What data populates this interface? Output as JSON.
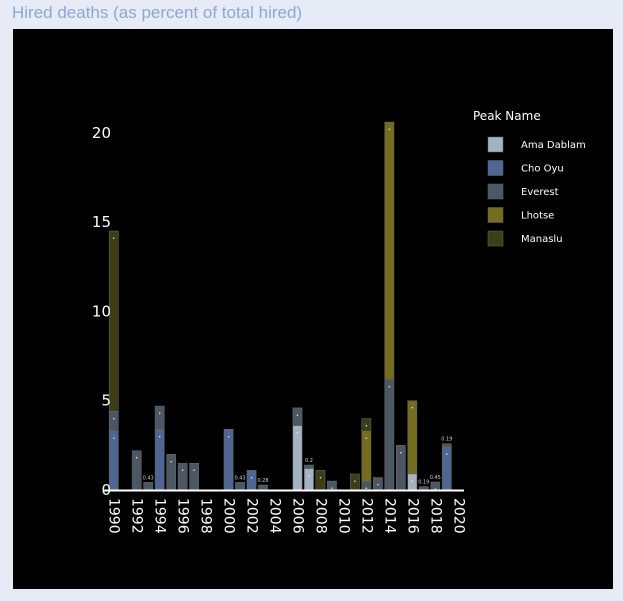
{
  "page": {
    "title": "Hired deaths (as percent of total hired)"
  },
  "chart_data": {
    "type": "bar",
    "stacked": true,
    "background": "#000000",
    "ylim": [
      0,
      21
    ],
    "yticks": [
      0,
      5,
      10,
      15,
      20
    ],
    "x_ticks": [
      1990,
      1992,
      1994,
      1996,
      1998,
      2000,
      2002,
      2004,
      2006,
      2008,
      2010,
      2012,
      2014,
      2016,
      2018,
      2020
    ],
    "legend": {
      "title": "Peak Name",
      "position": "top-right"
    },
    "series": [
      {
        "name": "Ama Dablam",
        "color": "#a4b3c1"
      },
      {
        "name": "Cho Oyu",
        "color": "#4f6592"
      },
      {
        "name": "Everest",
        "color": "#4b5762"
      },
      {
        "name": "Lhotse",
        "color": "#746c1f"
      },
      {
        "name": "Manaslu",
        "color": "#3d3d18"
      }
    ],
    "bars": [
      {
        "year": 1990,
        "segments": [
          {
            "series": "Cho Oyu",
            "value": 3.3
          },
          {
            "series": "Everest",
            "value": 1.1
          },
          {
            "series": "Manaslu",
            "value": 10.1
          }
        ]
      },
      {
        "year": 1992,
        "segments": [
          {
            "series": "Everest",
            "value": 2.2
          }
        ]
      },
      {
        "year": 1993,
        "segments": [
          {
            "series": "Everest",
            "value": 0.43
          }
        ],
        "total_label": "0.43"
      },
      {
        "year": 1994,
        "segments": [
          {
            "series": "Cho Oyu",
            "value": 3.4
          },
          {
            "series": "Everest",
            "value": 1.3
          }
        ]
      },
      {
        "year": 1995,
        "segments": [
          {
            "series": "Everest",
            "value": 2.0
          }
        ]
      },
      {
        "year": 1996,
        "segments": [
          {
            "series": "Everest",
            "value": 1.5
          }
        ]
      },
      {
        "year": 1997,
        "segments": [
          {
            "series": "Everest",
            "value": 1.5
          }
        ]
      },
      {
        "year": 2000,
        "segments": [
          {
            "series": "Cho Oyu",
            "value": 3.4
          }
        ]
      },
      {
        "year": 2001,
        "segments": [
          {
            "series": "Everest",
            "value": 0.43
          }
        ],
        "total_label": "0.43"
      },
      {
        "year": 2002,
        "segments": [
          {
            "series": "Cho Oyu",
            "value": 1.1
          }
        ]
      },
      {
        "year": 2003,
        "segments": [
          {
            "series": "Everest",
            "value": 0.28
          }
        ],
        "total_label": "0.28"
      },
      {
        "year": 2006,
        "segments": [
          {
            "series": "Ama Dablam",
            "value": 3.6
          },
          {
            "series": "Everest",
            "value": 1.0
          }
        ]
      },
      {
        "year": 2007,
        "segments": [
          {
            "series": "Ama Dablam",
            "value": 1.2
          },
          {
            "series": "Everest",
            "value": 0.2
          }
        ],
        "total_label": "0.2"
      },
      {
        "year": 2008,
        "segments": [
          {
            "series": "Manaslu",
            "value": 1.1
          }
        ]
      },
      {
        "year": 2009,
        "segments": [
          {
            "series": "Everest",
            "value": 0.5
          }
        ]
      },
      {
        "year": 2011,
        "segments": [
          {
            "series": "Manaslu",
            "value": 0.9
          }
        ]
      },
      {
        "year": 2012,
        "segments": [
          {
            "series": "Everest",
            "value": 0.5
          },
          {
            "series": "Lhotse",
            "value": 2.8
          },
          {
            "series": "Manaslu",
            "value": 0.7
          }
        ]
      },
      {
        "year": 2013,
        "segments": [
          {
            "series": "Everest",
            "value": 0.7
          }
        ]
      },
      {
        "year": 2014,
        "segments": [
          {
            "series": "Everest",
            "value": 6.2
          },
          {
            "series": "Lhotse",
            "value": 14.4
          }
        ]
      },
      {
        "year": 2015,
        "segments": [
          {
            "series": "Everest",
            "value": 2.5
          }
        ]
      },
      {
        "year": 2016,
        "segments": [
          {
            "series": "Ama Dablam",
            "value": 0.9
          },
          {
            "series": "Lhotse",
            "value": 4.1
          }
        ]
      },
      {
        "year": 2017,
        "segments": [
          {
            "series": "Everest",
            "value": 0.19
          }
        ],
        "total_label": "0.19"
      },
      {
        "year": 2018,
        "segments": [
          {
            "series": "Everest",
            "value": 0.45
          }
        ],
        "total_label": "0.45"
      },
      {
        "year": 2019,
        "segments": [
          {
            "series": "Cho Oyu",
            "value": 2.4
          },
          {
            "series": "Everest",
            "value": 0.19
          }
        ],
        "total_label": "0.19"
      }
    ]
  }
}
